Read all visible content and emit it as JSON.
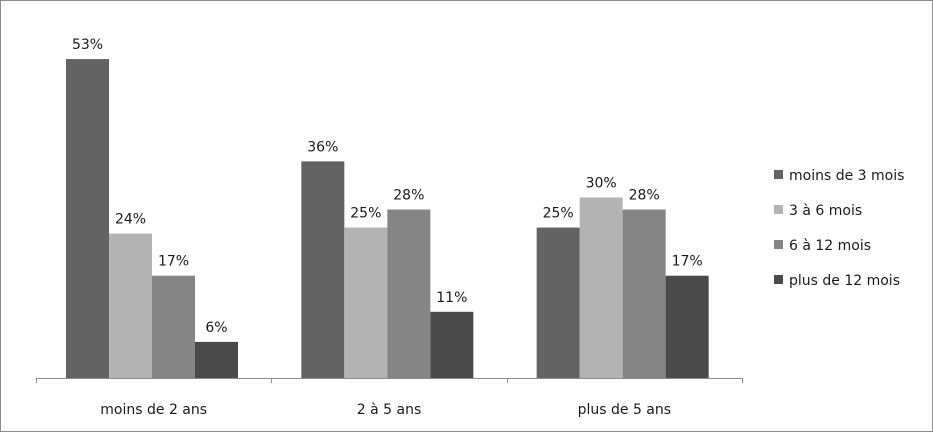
{
  "chart_data": {
    "type": "bar",
    "categories": [
      "moins de 2 ans",
      "2 à 5 ans",
      "plus de 5 ans"
    ],
    "series": [
      {
        "name": "moins de 3 mois",
        "values": [
          53,
          36,
          25
        ],
        "labels": [
          "53%",
          "36%",
          "25%"
        ],
        "color": "#636363"
      },
      {
        "name": "3 à 6 mois",
        "values": [
          24,
          25,
          30
        ],
        "labels": [
          "24%",
          "25%",
          "30%"
        ],
        "color": "#b3b3b3"
      },
      {
        "name": "6 à 12 mois",
        "values": [
          17,
          28,
          28
        ],
        "labels": [
          "17%",
          "28%",
          "28%"
        ],
        "color": "#858585"
      },
      {
        "name": "plus de 12 mois",
        "values": [
          6,
          11,
          17
        ],
        "labels": [
          "6%",
          "11%",
          "17%"
        ],
        "color": "#4a4a4a"
      }
    ],
    "ylim": [
      0,
      56
    ],
    "grid": false,
    "legend_position": "right",
    "axis_color": "#8c8c8c"
  }
}
